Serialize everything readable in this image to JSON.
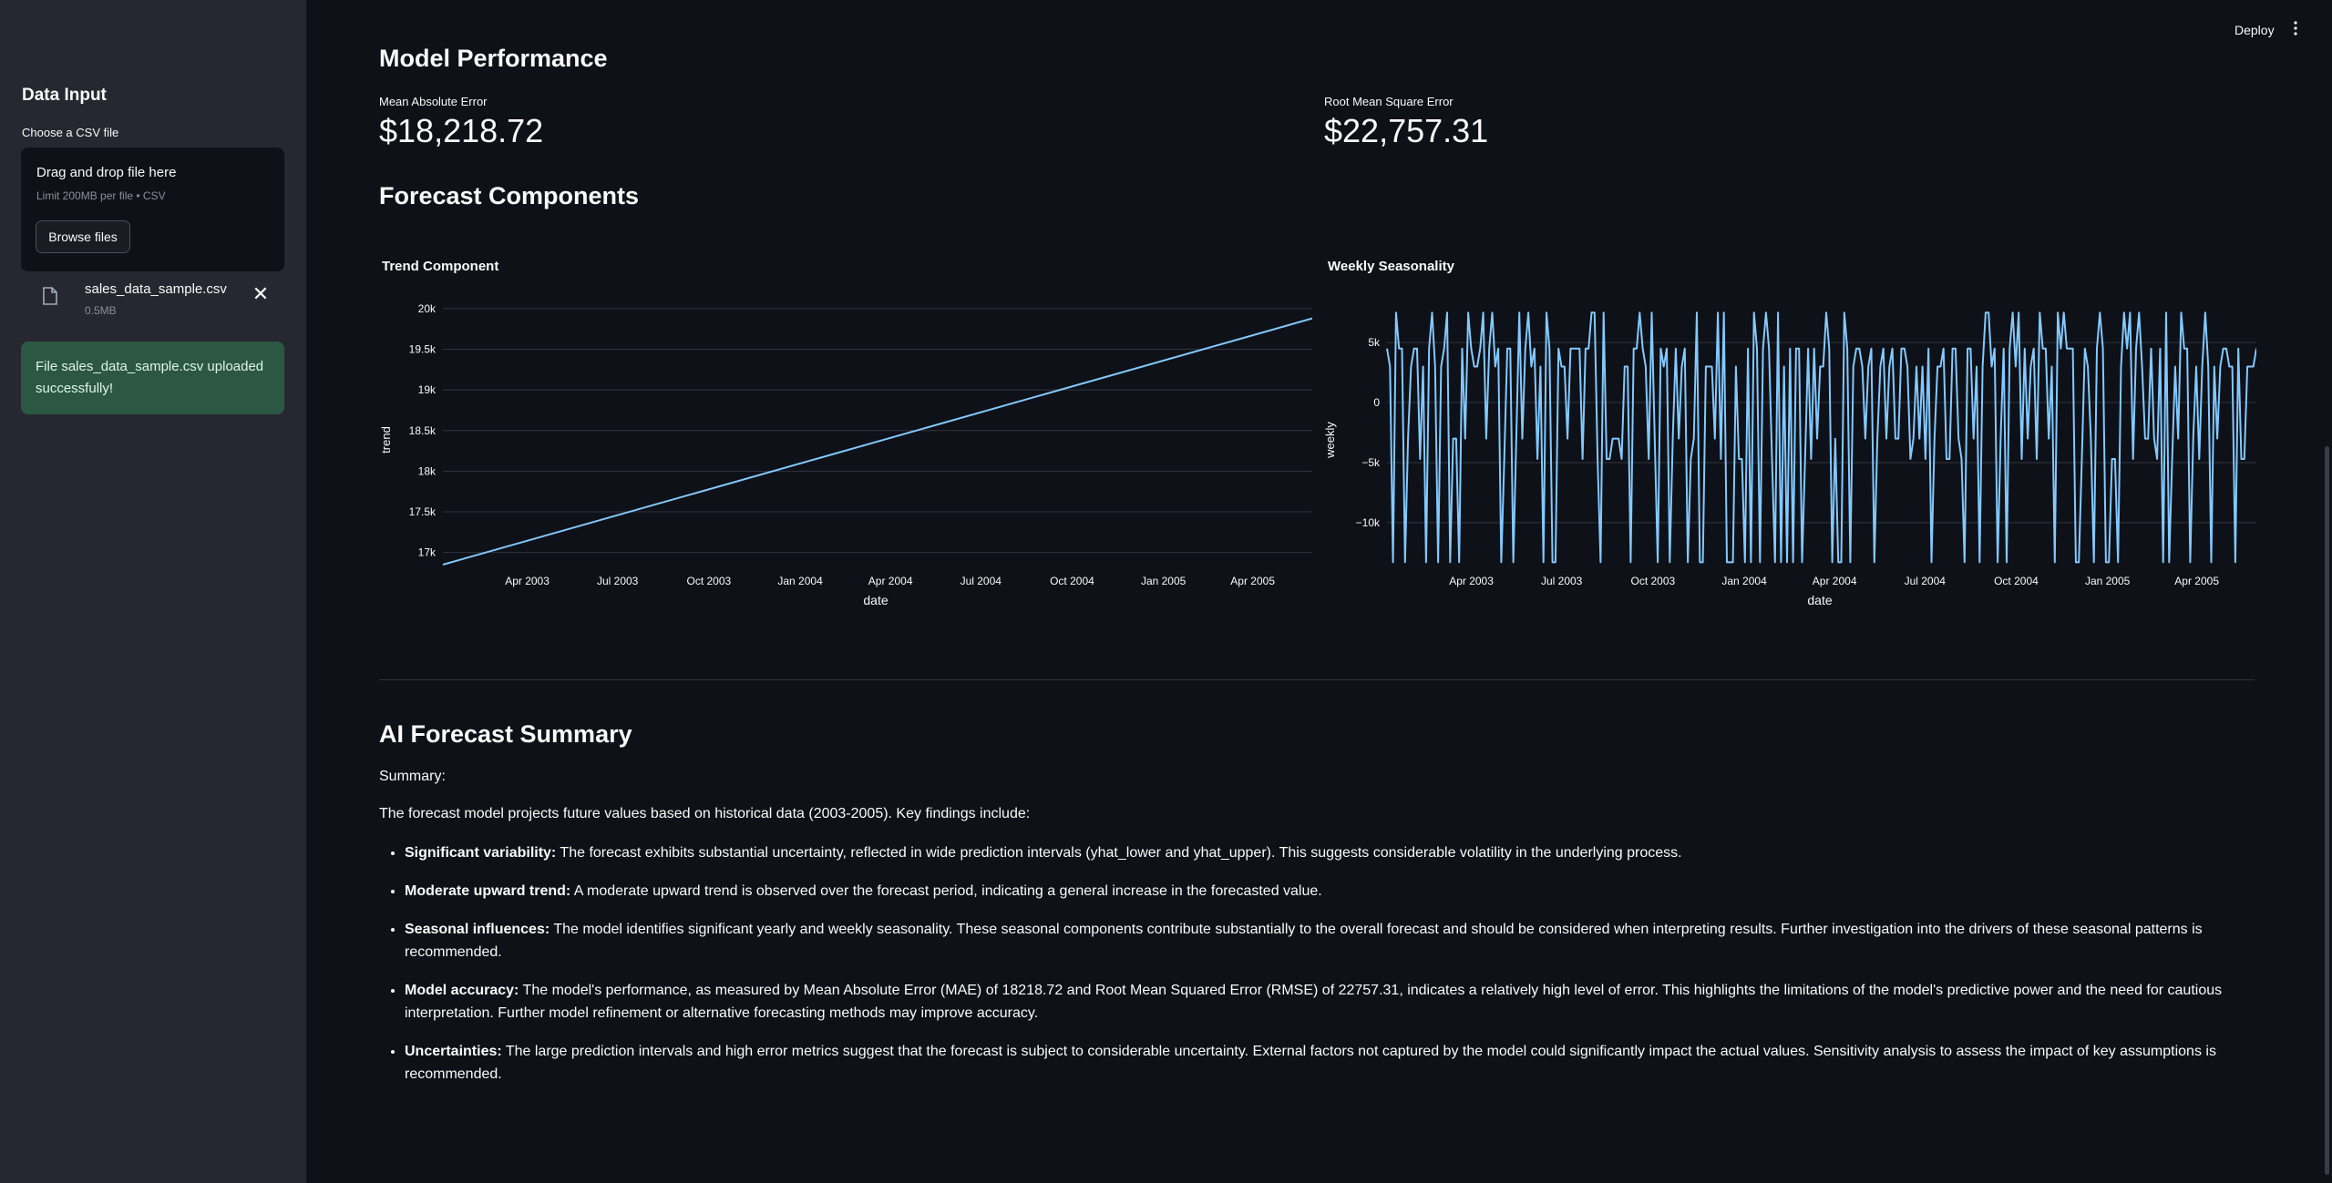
{
  "header": {
    "deploy_label": "Deploy"
  },
  "sidebar": {
    "title": "Data Input",
    "uploader_label": "Choose a CSV file",
    "dropzone_title": "Drag and drop file here",
    "dropzone_limit": "Limit 200MB per file • CSV",
    "browse_label": "Browse files",
    "file_name": "sales_data_sample.csv",
    "file_size": "0.5MB",
    "success_message": "File sales_data_sample.csv uploaded successfully!"
  },
  "performance": {
    "heading": "Model Performance",
    "mae_label": "Mean Absolute Error",
    "mae_value": "$18,218.72",
    "rmse_label": "Root Mean Square Error",
    "rmse_value": "$22,757.31"
  },
  "components": {
    "heading": "Forecast Components"
  },
  "chart_data": [
    {
      "type": "line",
      "title": "Trend Component",
      "xlabel": "date",
      "ylabel": "trend",
      "x_tick_labels": [
        "Apr 2003",
        "Jul 2003",
        "Oct 2003",
        "Jan 2004",
        "Apr 2004",
        "Jul 2004",
        "Oct 2004",
        "Jan 2005",
        "Apr 2005"
      ],
      "y_tick_labels": [
        "17k",
        "17.5k",
        "18k",
        "18.5k",
        "19k",
        "19.5k",
        "20k"
      ],
      "ylim": [
        16850,
        20100
      ],
      "series": [
        {
          "x": [
            "2003-01-06",
            "2005-05-31"
          ],
          "y": [
            16850,
            19880
          ]
        }
      ],
      "color": "#83c9ff",
      "grid": true
    },
    {
      "type": "line",
      "title": "Weekly Seasonality",
      "xlabel": "date",
      "ylabel": "weekly",
      "x_tick_labels": [
        "Apr 2003",
        "Jul 2003",
        "Oct 2003",
        "Jan 2004",
        "Apr 2004",
        "Jul 2004",
        "Oct 2004",
        "Jan 2005",
        "Apr 2005"
      ],
      "y_tick_labels": [
        "5k",
        "0",
        "−5k",
        "−10k"
      ],
      "ylim": [
        -13500,
        8500
      ],
      "y_levels": [
        7500,
        4500,
        3000,
        -3000,
        -4700,
        -13300
      ],
      "series": [
        {
          "x_range": [
            "2003-01-06",
            "2005-05-31"
          ],
          "points": 290,
          "y_min": -13300,
          "y_max": 7500
        }
      ],
      "color": "#83c9ff",
      "grid": true
    }
  ],
  "summary": {
    "heading": "AI Forecast Summary",
    "label": "Summary:",
    "intro": "The forecast model projects future values based on historical data (2003-2005). Key findings include:",
    "bullets": [
      {
        "title": "Significant variability:",
        "text": " The forecast exhibits substantial uncertainty, reflected in wide prediction intervals (yhat_lower and yhat_upper). This suggests considerable volatility in the underlying process."
      },
      {
        "title": "Moderate upward trend:",
        "text": " A moderate upward trend is observed over the forecast period, indicating a general increase in the forecasted value."
      },
      {
        "title": "Seasonal influences:",
        "text": " The model identifies significant yearly and weekly seasonality. These seasonal components contribute substantially to the overall forecast and should be considered when interpreting results. Further investigation into the drivers of these seasonal patterns is recommended."
      },
      {
        "title": "Model accuracy:",
        "text": " The model's performance, as measured by Mean Absolute Error (MAE) of 18218.72 and Root Mean Squared Error (RMSE) of 22757.31, indicates a relatively high level of error. This highlights the limitations of the model's predictive power and the need for cautious interpretation. Further model refinement or alternative forecasting methods may improve accuracy."
      },
      {
        "title": "Uncertainties:",
        "text": " The large prediction intervals and high error metrics suggest that the forecast is subject to considerable uncertainty. External factors not captured by the model could significantly impact the actual values. Sensitivity analysis to assess the impact of key assumptions is recommended."
      }
    ]
  }
}
